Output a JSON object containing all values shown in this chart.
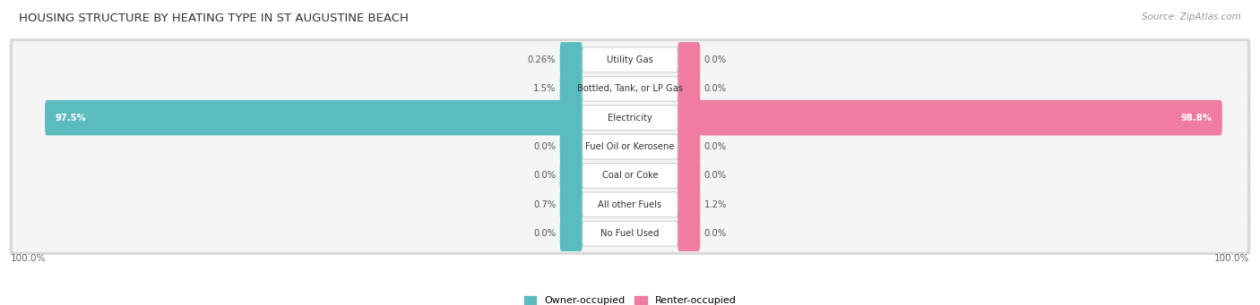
{
  "title": "HOUSING STRUCTURE BY HEATING TYPE IN ST AUGUSTINE BEACH",
  "source": "Source: ZipAtlas.com",
  "categories": [
    "Utility Gas",
    "Bottled, Tank, or LP Gas",
    "Electricity",
    "Fuel Oil or Kerosene",
    "Coal or Coke",
    "All other Fuels",
    "No Fuel Used"
  ],
  "owner_values": [
    0.26,
    1.5,
    97.5,
    0.0,
    0.0,
    0.7,
    0.0
  ],
  "renter_values": [
    0.0,
    0.0,
    98.8,
    0.0,
    0.0,
    1.2,
    0.0
  ],
  "owner_color": "#5bbcbf",
  "renter_color": "#f07ca0",
  "row_bg_color": "#f0f0f0",
  "row_bg_inner": "#f8f8f8",
  "max_value": 100.0,
  "left_label": "100.0%",
  "right_label": "100.0%",
  "legend_owner": "Owner-occupied",
  "legend_renter": "Renter-occupied",
  "owner_labels": [
    "0.26%",
    "1.5%",
    "97.5%",
    "0.0%",
    "0.0%",
    "0.7%",
    "0.0%"
  ],
  "renter_labels": [
    "0.0%",
    "0.0%",
    "98.8%",
    "0.0%",
    "0.0%",
    "1.2%",
    "0.0%"
  ],
  "min_stub": 3.5
}
